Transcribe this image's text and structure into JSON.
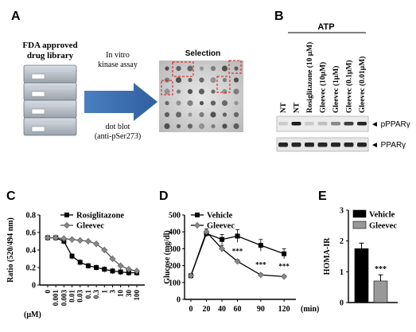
{
  "panels": {
    "a": {
      "letter": "A",
      "library_label_line1": "FDA approved",
      "library_label_line2": "drug library",
      "arrow_text_line1": "In vitro",
      "arrow_text_line2": "kinase assay",
      "arrow_text_line3": "dot blot",
      "arrow_text_line4": "(anti-pSer273)",
      "selection_label": "Selection"
    },
    "b": {
      "letter": "B",
      "atp_label": "ATP",
      "lanes": [
        "NT",
        "NT",
        "Rosiglitazone (10 μM)",
        "Gleevec (10μM)",
        "Gleevec (1μM)",
        "Gleevec (0.1μM)",
        "Gleevec (0.01μM)"
      ],
      "blot_labels": [
        "◄ pPPARγ",
        "◄ PPARγ"
      ]
    },
    "c": {
      "letter": "C"
    },
    "d": {
      "letter": "D"
    },
    "e": {
      "letter": "E"
    }
  },
  "chart_data": [
    {
      "id": "C",
      "type": "line",
      "ylabel": "Ratio (520/494 nm)",
      "xunit_label": "(μM)",
      "x_tick_labels": [
        "0",
        "0.001",
        "0.003",
        "0.01",
        "0.03",
        "0.1",
        "0.3",
        "1",
        "3",
        "10",
        "30",
        "100"
      ],
      "ylim": [
        0,
        0.8
      ],
      "y_ticks": [
        "0",
        "0.2",
        "0.4",
        "0.6",
        "0.8"
      ],
      "series": [
        {
          "name": "Rosiglitazone",
          "marker": "square",
          "values": [
            0.54,
            0.54,
            0.5,
            0.33,
            0.26,
            0.22,
            0.2,
            0.18,
            0.16,
            0.15,
            0.14,
            0.14
          ]
        },
        {
          "name": "Gleevec",
          "marker": "diamond",
          "values": [
            0.54,
            0.54,
            0.53,
            0.52,
            0.51,
            0.5,
            0.47,
            0.4,
            0.3,
            0.22,
            0.18,
            0.16
          ]
        }
      ]
    },
    {
      "id": "D",
      "type": "line",
      "ylabel": "Glucose (mg/dl)",
      "xlabel": "(min)",
      "x": [
        0,
        20,
        40,
        60,
        90,
        120
      ],
      "x_tick_labels": [
        "0",
        "20",
        "40",
        "60",
        "90",
        "120"
      ],
      "ylim": [
        0,
        500
      ],
      "y_ticks": [
        "0",
        "100",
        "200",
        "300",
        "400",
        "500"
      ],
      "series": [
        {
          "name": "Vehicle",
          "marker": "square",
          "values": [
            140,
            390,
            355,
            375,
            320,
            270
          ]
        },
        {
          "name": "Gleevec",
          "marker": "diamond",
          "values": [
            140,
            400,
            300,
            225,
            145,
            135
          ]
        }
      ],
      "significance": [
        {
          "x": 60,
          "label": "***"
        },
        {
          "x": 90,
          "label": "***"
        },
        {
          "x": 120,
          "label": "***"
        }
      ]
    },
    {
      "id": "E",
      "type": "bar",
      "ylabel": "HOMA-IR",
      "categories": [
        "Vehicle",
        "Gleevec"
      ],
      "values": [
        1.75,
        0.7
      ],
      "ylim": [
        0,
        3
      ],
      "y_ticks": [
        "0",
        "1",
        "2",
        "3"
      ],
      "colors": [
        "#000000",
        "#999999"
      ],
      "significance": [
        {
          "category": "Gleevec",
          "label": "***"
        }
      ]
    }
  ]
}
